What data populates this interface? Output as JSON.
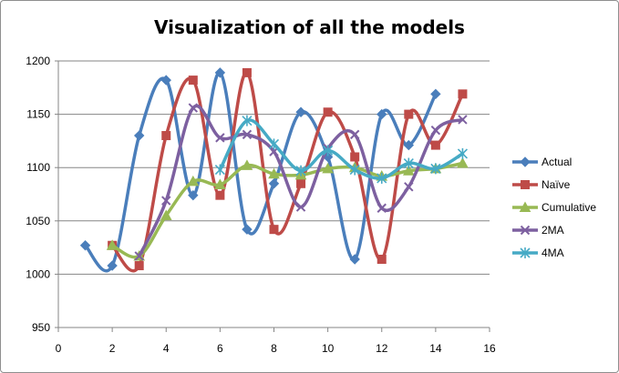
{
  "chart_data": {
    "type": "line",
    "title": "Visualization of all the models",
    "xlabel": "",
    "ylabel": "",
    "xlim": [
      0,
      16
    ],
    "ylim": [
      950,
      1200
    ],
    "x_ticks": [
      0,
      2,
      4,
      6,
      8,
      10,
      12,
      14,
      16
    ],
    "y_ticks": [
      950,
      1000,
      1050,
      1100,
      1150,
      1200
    ],
    "grid": "horizontal",
    "legend_position": "right",
    "smooth": true,
    "series": [
      {
        "name": "Actual",
        "color": "#4a7ebb",
        "marker": "diamond",
        "x": [
          1,
          2,
          3,
          4,
          5,
          6,
          7,
          8,
          9,
          10,
          11,
          12,
          13,
          14
        ],
        "y": [
          1027,
          1008,
          1130,
          1182,
          1074,
          1189,
          1042,
          1085,
          1152,
          1110,
          1014,
          1150,
          1121,
          1169
        ]
      },
      {
        "name": "Naïve",
        "color": "#be4b48",
        "marker": "square",
        "x": [
          2,
          3,
          4,
          5,
          6,
          7,
          8,
          9,
          10,
          11,
          12,
          13,
          14,
          15
        ],
        "y": [
          1027,
          1008,
          1130,
          1182,
          1074,
          1189,
          1042,
          1085,
          1152,
          1110,
          1014,
          1150,
          1121,
          1169
        ]
      },
      {
        "name": "Cumulative",
        "color": "#98b954",
        "marker": "triangle",
        "x": [
          2,
          3,
          4,
          5,
          6,
          7,
          8,
          9,
          10,
          11,
          12,
          13,
          14,
          15
        ],
        "y": [
          1027,
          1017,
          1055,
          1087,
          1084,
          1102,
          1094,
          1093,
          1099,
          1100,
          1092,
          1097,
          1099,
          1104
        ]
      },
      {
        "name": "2MA",
        "color": "#7d60a0",
        "marker": "x",
        "x": [
          3,
          4,
          5,
          6,
          7,
          8,
          9,
          10,
          11,
          12,
          13,
          14,
          15
        ],
        "y": [
          1017,
          1069,
          1156,
          1128,
          1131,
          1115,
          1063,
          1118,
          1131,
          1062,
          1082,
          1135,
          1145
        ]
      },
      {
        "name": "4MA",
        "color": "#46aac5",
        "marker": "star",
        "x": [
          6,
          7,
          8,
          9,
          10,
          11,
          12,
          13,
          14,
          15
        ],
        "y": [
          1098,
          1144,
          1122,
          1097,
          1116,
          1098,
          1090,
          1104,
          1099,
          1113
        ]
      }
    ]
  }
}
